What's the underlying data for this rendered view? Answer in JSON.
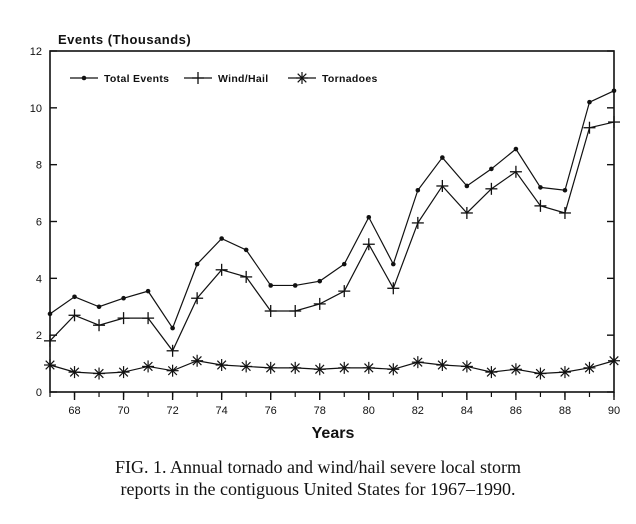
{
  "chart_data": {
    "type": "line",
    "ylabel": "Events (Thousands)",
    "xlabel": "Years",
    "x": [
      1967,
      1968,
      1969,
      1970,
      1971,
      1972,
      1973,
      1974,
      1975,
      1976,
      1977,
      1978,
      1979,
      1980,
      1981,
      1982,
      1983,
      1984,
      1985,
      1986,
      1987,
      1988,
      1989,
      1990
    ],
    "xlim": [
      1967,
      1990
    ],
    "ylim": [
      0,
      12
    ],
    "x_ticks": [
      1968,
      1970,
      1972,
      1974,
      1976,
      1978,
      1980,
      1982,
      1984,
      1986,
      1988,
      1990
    ],
    "x_tick_labels": [
      "68",
      "70",
      "72",
      "74",
      "76",
      "78",
      "80",
      "82",
      "84",
      "86",
      "88",
      "90"
    ],
    "y_ticks": [
      0,
      2,
      4,
      6,
      8,
      10,
      12
    ],
    "y_tick_labels": [
      "0",
      "2",
      "4",
      "6",
      "8",
      "10",
      "12"
    ],
    "grid": false,
    "legend_position": "top-left",
    "series": [
      {
        "name": "Total Events",
        "marker": "dot",
        "values": [
          2.75,
          3.35,
          3.0,
          3.3,
          3.55,
          2.25,
          4.5,
          5.4,
          5.0,
          3.75,
          3.75,
          3.9,
          4.5,
          6.15,
          4.5,
          7.1,
          8.25,
          7.25,
          7.85,
          8.55,
          7.2,
          7.1,
          10.2,
          10.6
        ]
      },
      {
        "name": "Wind/Hail",
        "marker": "plus",
        "values": [
          1.8,
          2.7,
          2.35,
          2.6,
          2.6,
          1.45,
          3.3,
          4.3,
          4.05,
          2.85,
          2.85,
          3.1,
          3.55,
          5.2,
          3.65,
          5.95,
          7.25,
          6.3,
          7.15,
          7.75,
          6.55,
          6.3,
          9.3,
          9.5
        ]
      },
      {
        "name": "Tornadoes",
        "marker": "asterisk",
        "values": [
          0.95,
          0.7,
          0.65,
          0.7,
          0.9,
          0.75,
          1.1,
          0.95,
          0.9,
          0.85,
          0.85,
          0.8,
          0.85,
          0.85,
          0.8,
          1.05,
          0.95,
          0.9,
          0.7,
          0.8,
          0.65,
          0.7,
          0.85,
          1.1
        ]
      }
    ]
  },
  "caption": {
    "line1": "FIG. 1. Annual tornado and wind/hail severe local storm",
    "line2": "reports in the contiguous United States for 1967–1990."
  }
}
